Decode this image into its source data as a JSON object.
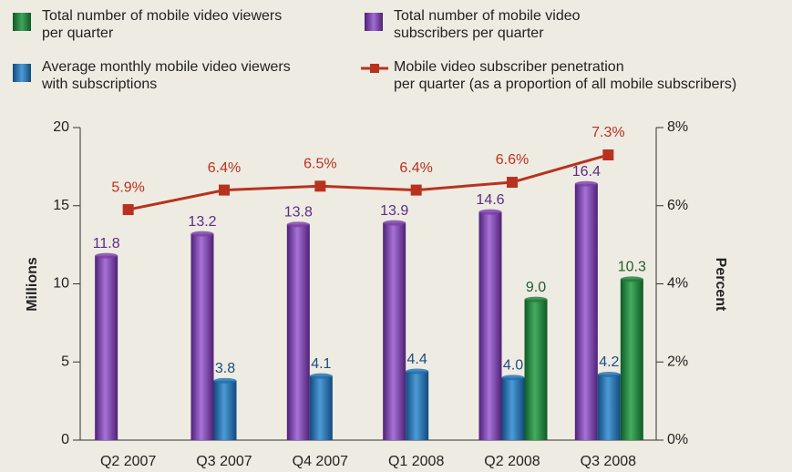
{
  "chart_data": {
    "type": "bar",
    "categories": [
      "Q2 2007",
      "Q3 2007",
      "Q4 2007",
      "Q1 2008",
      "Q2 2008",
      "Q3 2008"
    ],
    "series": [
      {
        "name": "Total number of mobile video\nsubscribers per quarter",
        "color": "#7b3fa8",
        "label_color": "#5a2d82",
        "values": [
          11.8,
          13.2,
          13.8,
          13.9,
          14.6,
          16.4
        ],
        "value_labels": [
          "11.8",
          "13.2",
          "13.8",
          "13.9",
          "14.6",
          "16.4"
        ]
      },
      {
        "name": "Average monthly mobile video viewers\nwith subscriptions",
        "color": "#1f6fb0",
        "label_color": "#1a4f80",
        "values": [
          null,
          3.8,
          4.1,
          4.4,
          4.0,
          4.2
        ],
        "value_labels": [
          null,
          "3.8",
          "4.1",
          "4.4",
          "4.0",
          "4.2"
        ]
      },
      {
        "name": "Total number of mobile video viewers\nper quarter",
        "color": "#1f7a3a",
        "label_color": "#1e5e2c",
        "values": [
          null,
          null,
          null,
          null,
          9.0,
          10.3
        ],
        "value_labels": [
          null,
          null,
          null,
          null,
          "9.0",
          "10.3"
        ]
      },
      {
        "name": "Mobile video subscriber penetration\nper quarter (as a proportion of all mobile subscribers)",
        "color": "#b8321f",
        "label_color": "#b8321f",
        "type": "line",
        "axis": "y2",
        "values": [
          5.9,
          6.4,
          6.5,
          6.4,
          6.6,
          7.3
        ],
        "value_labels": [
          "5.9%",
          "6.4%",
          "6.5%",
          "6.4%",
          "6.6%",
          "7.3%"
        ]
      }
    ],
    "ylabel": "Millions",
    "y2label": "Percent",
    "ylim": [
      0,
      20
    ],
    "yticks": [
      0,
      5,
      10,
      15,
      20
    ],
    "y2lim": [
      0,
      8
    ],
    "y2ticks": [
      {
        "value": 0,
        "label": "0%"
      },
      {
        "value": 2,
        "label": "2%"
      },
      {
        "value": 4,
        "label": "4%"
      },
      {
        "value": 6,
        "label": "6%"
      },
      {
        "value": 8,
        "label": "8%"
      }
    ]
  }
}
